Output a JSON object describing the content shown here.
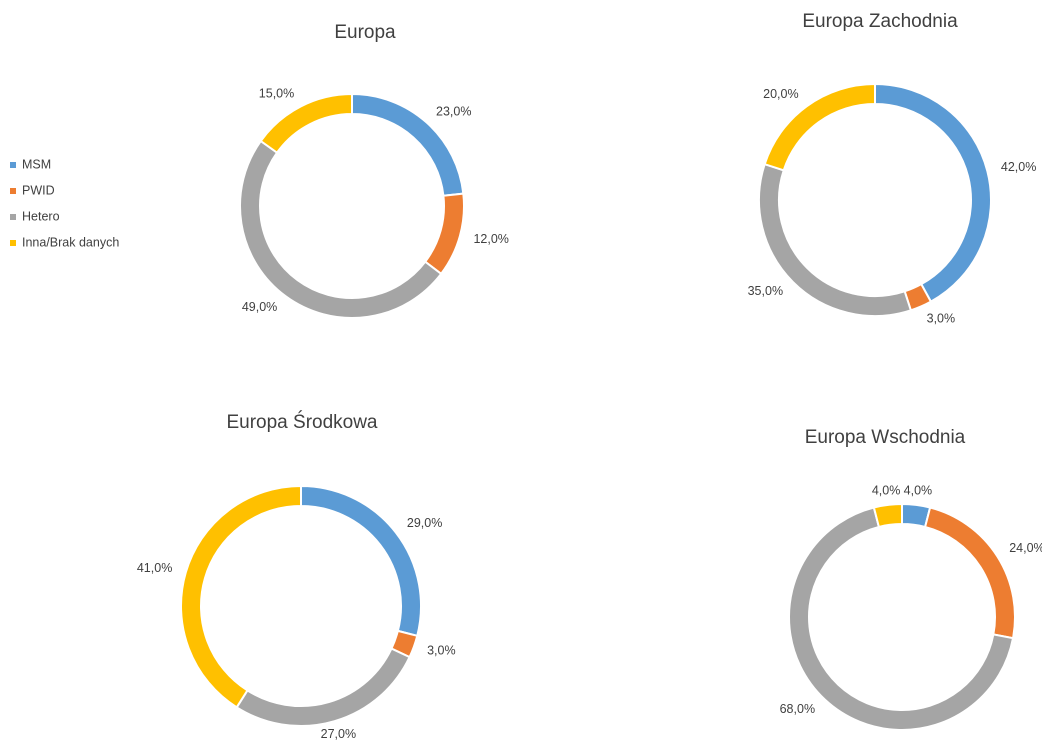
{
  "chart_data": [
    {
      "type": "pie",
      "title": "Europa",
      "categories": [
        "MSM",
        "PWID",
        "Hetero",
        "Inna/Brak danych"
      ],
      "colors": [
        "#5b9bd5",
        "#ed7d31",
        "#a5a5a5",
        "#ffc000"
      ],
      "values": [
        23,
        12,
        49,
        15
      ],
      "value_labels": [
        "23,0%",
        "12,0%",
        "49,0%",
        "15,0%"
      ]
    },
    {
      "type": "pie",
      "title": "Europa Zachodnia",
      "values": [
        42,
        3,
        35,
        20
      ],
      "value_labels": [
        "42,0%",
        "3,0%",
        "35,0%",
        "20,0%"
      ]
    },
    {
      "type": "pie",
      "title": "Europa Środkowa",
      "values": [
        29,
        3,
        27,
        41
      ],
      "value_labels": [
        "29,0%",
        "3,0%",
        "27,0%",
        "41,0%"
      ]
    },
    {
      "type": "pie",
      "title": "Europa Wschodnia",
      "values": [
        4,
        24,
        68,
        4
      ],
      "value_labels": [
        "4,0%",
        "24,0%",
        "68,0%",
        "4,0%"
      ]
    }
  ]
}
